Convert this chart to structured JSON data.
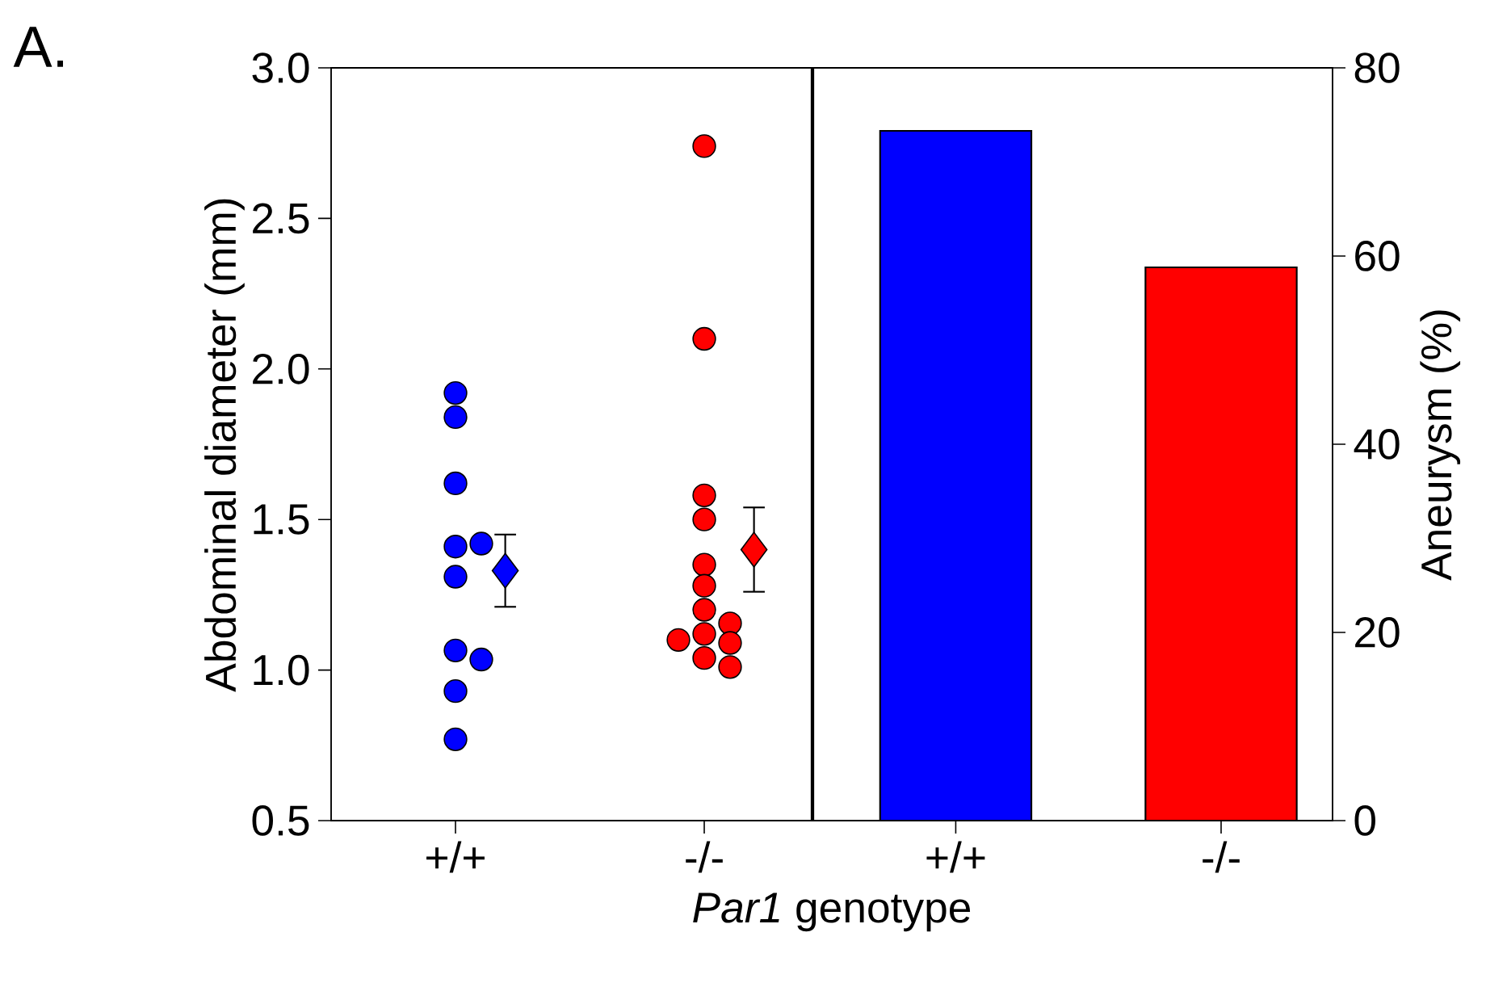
{
  "chart_data": [
    {
      "type": "scatter",
      "title": "A.",
      "xlabel": "*Par1* genotype",
      "ylabel": "Abdominal diameter (mm)",
      "categories": [
        "+/+",
        "-/-"
      ],
      "ylim": [
        0.5,
        3.0
      ],
      "yticks": [
        {
          "value": 0.5,
          "label": "0.5"
        },
        {
          "value": 1.0,
          "label": "1.0"
        },
        {
          "value": 1.5,
          "label": "1.5"
        },
        {
          "value": 2.0,
          "label": "2.0"
        },
        {
          "value": 2.5,
          "label": "2.5"
        },
        {
          "value": 3.0,
          "label": "3.0"
        }
      ],
      "series": [
        {
          "marker": "circle",
          "color": "#0000ff",
          "x": [
            "+/+",
            "+/+",
            "+/+",
            "+/+",
            "+/+",
            "+/+",
            "+/+",
            "+/+",
            "+/+",
            "+/+"
          ],
          "values": [
            1.92,
            1.84,
            1.62,
            1.41,
            1.42,
            1.31,
            1.065,
            1.035,
            0.93,
            0.77
          ]
        },
        {
          "marker": "diamond",
          "color": "#0000ff",
          "x": [
            "+/+"
          ],
          "values": [
            1.33
          ],
          "errors": [
            0.12
          ]
        },
        {
          "marker": "circle",
          "color": "#ff0000",
          "x": [
            "-/-",
            "-/-",
            "-/-",
            "-/-",
            "-/-",
            "-/-",
            "-/-",
            "-/-",
            "-/-",
            "-/-",
            "-/-",
            "-/-",
            "-/-"
          ],
          "values": [
            2.74,
            2.1,
            1.58,
            1.5,
            1.35,
            1.28,
            1.2,
            1.155,
            1.12,
            1.1,
            1.09,
            1.04,
            1.01
          ]
        },
        {
          "marker": "diamond",
          "color": "#ff0000",
          "x": [
            "-/-"
          ],
          "values": [
            1.4
          ],
          "errors": [
            0.14
          ]
        }
      ]
    },
    {
      "type": "bar",
      "y2label": "Aneurysm (%)",
      "categories": [
        "+/+",
        "-/-"
      ],
      "y2lim": [
        0,
        80
      ],
      "y2ticks": [
        0,
        20,
        40,
        60,
        80
      ],
      "series": [
        {
          "axis": "y2",
          "values": [
            73.3,
            58.8
          ],
          "colors": [
            "#0000ff",
            "#ff0000"
          ]
        }
      ]
    }
  ]
}
